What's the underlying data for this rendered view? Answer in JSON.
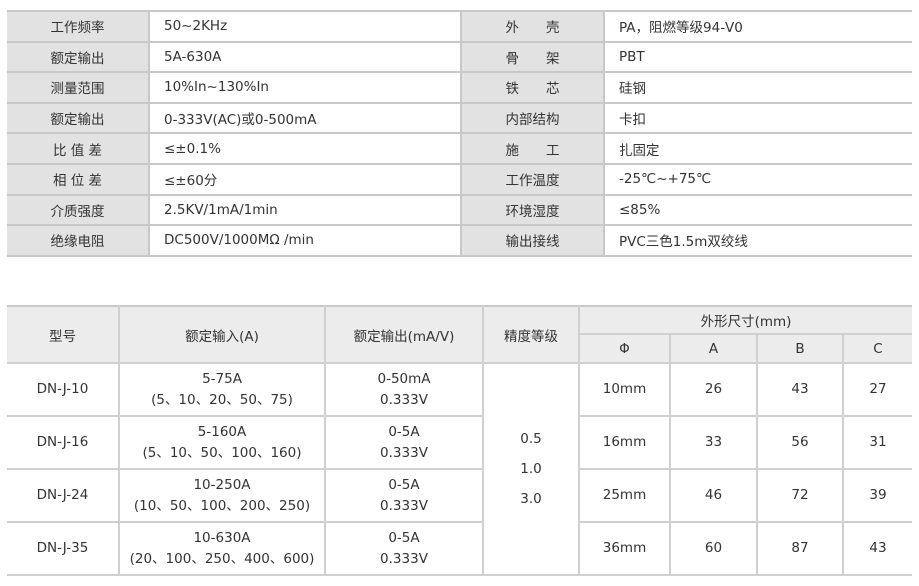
{
  "spec_table": {
    "rows": [
      {
        "label1": "工作频率",
        "value1": "50~2KHz",
        "label2": "外　　壳",
        "value2": "PA，阻燃等级94-V0"
      },
      {
        "label1": "额定输出",
        "value1": "5A-630A",
        "label2": "骨　　架",
        "value2": "PBT"
      },
      {
        "label1": "测量范围",
        "value1": "10%In~130%In",
        "label2": "铁　　芯",
        "value2": "硅钢"
      },
      {
        "label1": "额定输出",
        "value1": "0-333V(AC)或0-500mA",
        "label2": "内部结构",
        "value2": "卡扣"
      },
      {
        "label1": "比 值 差",
        "value1": "≤±0.1%",
        "label2": "施　　工",
        "value2": "扎固定"
      },
      {
        "label1": "相 位 差",
        "value1": "≤±60分",
        "label2": "工作温度",
        "value2": "-25℃~+75℃"
      },
      {
        "label1": "介质强度",
        "value1": "2.5KV/1mA/1min",
        "label2": "环境湿度",
        "value2": "≤85%"
      },
      {
        "label1": "绝缘电阻",
        "value1": "DC500V/1000MΩ /min",
        "label2": "输出接线",
        "value2": "PVC三色1.5m双绞线"
      }
    ]
  },
  "model_table": {
    "headers": {
      "model": "型号",
      "input": "额定输入(A)",
      "output": "额定输出(mA/V)",
      "accuracy": "精度等级",
      "dims": "外形尺寸(mm)",
      "phi": "Φ",
      "a": "A",
      "b": "B",
      "c": "C"
    },
    "accuracy_values": [
      "0.5",
      "1.0",
      "3.0"
    ],
    "rows": [
      {
        "model": "DN-J-10",
        "input1": "5-75A",
        "input2": "(5、10、20、50、75)",
        "output1": "0-50mA",
        "output2": "0.333V",
        "phi": "10mm",
        "a": "26",
        "b": "43",
        "c": "27"
      },
      {
        "model": "DN-J-16",
        "input1": "5-160A",
        "input2": "(5、10、50、100、160)",
        "output1": "0-5A",
        "output2": "0.333V",
        "phi": "16mm",
        "a": "33",
        "b": "56",
        "c": "31"
      },
      {
        "model": "DN-J-24",
        "input1": "10-250A",
        "input2": "(10、50、100、200、250)",
        "output1": "0-5A",
        "output2": "0.333V",
        "phi": "25mm",
        "a": "46",
        "b": "72",
        "c": "39"
      },
      {
        "model": "DN-J-35",
        "input1": "10-630A",
        "input2": "(20、100、250、400、600)",
        "output1": "0-5A",
        "output2": "0.333V",
        "phi": "36mm",
        "a": "60",
        "b": "87",
        "c": "43"
      }
    ]
  }
}
